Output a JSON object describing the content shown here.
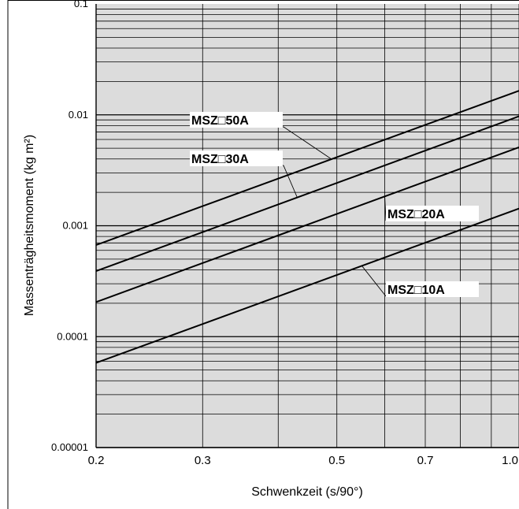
{
  "chart_data": {
    "type": "line",
    "title": "",
    "xlabel": "Schwenkzeit (s/90°)",
    "ylabel": "Massenträgheitsmoment (kg m²)",
    "x_scale": "log",
    "y_scale": "log",
    "xlim": [
      0.2,
      1.0
    ],
    "ylim": [
      1e-05,
      0.1
    ],
    "grid": true,
    "background_color": "#dcdcdc",
    "line_color": "#000000",
    "x_ticks": [
      {
        "value": 0.2,
        "label": "0.2"
      },
      {
        "value": 0.3,
        "label": "0.3"
      },
      {
        "value": 0.5,
        "label": "0.5"
      },
      {
        "value": 0.7,
        "label": "0.7"
      },
      {
        "value": 1.0,
        "label": "1.0"
      }
    ],
    "x_grid_values": [
      0.2,
      0.3,
      0.4,
      0.5,
      0.6,
      0.7,
      0.8,
      0.9,
      1.0
    ],
    "y_ticks": [
      {
        "value": 1e-05,
        "label": "0.00001"
      },
      {
        "value": 0.0001,
        "label": "0.0001"
      },
      {
        "value": 0.001,
        "label": "0.001"
      },
      {
        "value": 0.01,
        "label": "0.01"
      },
      {
        "value": 0.1,
        "label": "0.1"
      }
    ],
    "series": [
      {
        "name": "MSZ□50A",
        "x": [
          0.2,
          1.0
        ],
        "y": [
          0.00067,
          0.0165
        ]
      },
      {
        "name": "MSZ□30A",
        "x": [
          0.2,
          1.0
        ],
        "y": [
          0.00039,
          0.0097
        ]
      },
      {
        "name": "MSZ□20A",
        "x": [
          0.2,
          1.0
        ],
        "y": [
          0.000205,
          0.0051
        ]
      },
      {
        "name": "MSZ□10A",
        "x": [
          0.2,
          1.0
        ],
        "y": [
          5.8e-05,
          0.00143
        ]
      }
    ]
  }
}
